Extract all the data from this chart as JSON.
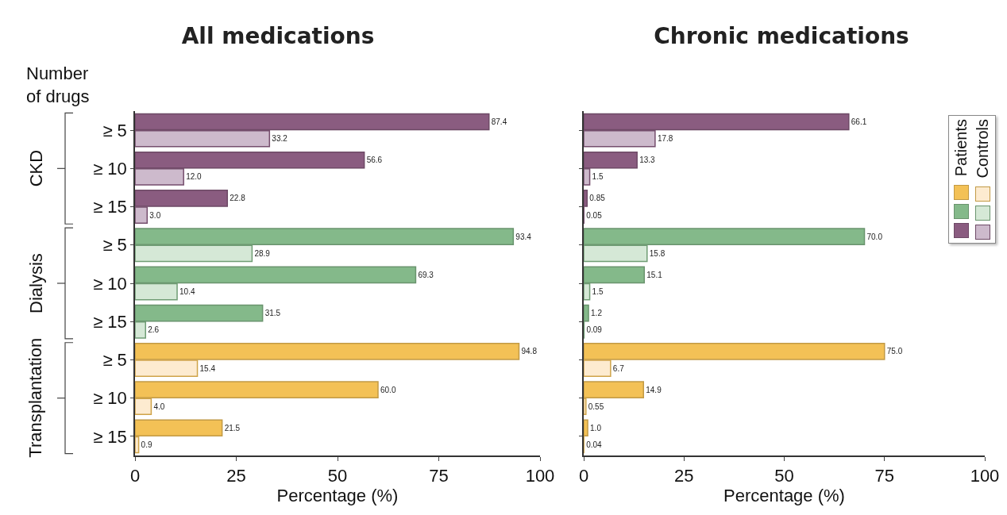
{
  "chart_data": [
    {
      "type": "bar",
      "orientation": "horizontal",
      "title": "All medications",
      "xlabel": "Percentage (%)",
      "categories": [
        "≥ 5",
        "≥ 10",
        "≥ 15",
        "≥ 5",
        "≥ 10",
        "≥ 15",
        "≥ 5",
        "≥ 10",
        "≥ 15"
      ],
      "xlim": [
        0,
        100
      ],
      "xticks": [
        0,
        25,
        50,
        75,
        100
      ],
      "legend": false,
      "grid": false,
      "annotations": [
        "Number of drugs",
        "CKD",
        "Dialysis",
        "Transplantation"
      ],
      "series": [
        {
          "colors": [
            "#8a5c80",
            "#8a5c80",
            "#8a5c80",
            "#84b98a",
            "#84b98a",
            "#84b98a",
            "#f3c156",
            "#f3c156",
            "#f3c156"
          ],
          "values": [
            87.4,
            56.6,
            22.8,
            93.4,
            69.3,
            31.5,
            94.8,
            60.0,
            21.5
          ],
          "value_labels": [
            "87.4",
            "56.6",
            "22.8",
            "93.4",
            "69.3",
            "31.5",
            "94.8",
            "60.0",
            "21.5"
          ]
        },
        {
          "colors": [
            "#cdbacc",
            "#cdbacc",
            "#cdbacc",
            "#d5e8d6",
            "#d5e8d6",
            "#d5e8d6",
            "#fdebd0",
            "#fdebd0",
            "#fdebd0"
          ],
          "values": [
            33.2,
            12.0,
            3.0,
            28.9,
            10.4,
            2.6,
            15.4,
            4.0,
            0.9
          ],
          "value_labels": [
            "33.2",
            "12.0",
            "3.0",
            "28.9",
            "10.4",
            "2.6",
            "15.4",
            "4.0",
            "0.9"
          ]
        }
      ]
    },
    {
      "type": "bar",
      "orientation": "horizontal",
      "title": "Chronic medications",
      "xlabel": "Percentage (%)",
      "categories": [
        null,
        null,
        null,
        null,
        null,
        null,
        null,
        null,
        null
      ],
      "xlim": [
        0,
        100
      ],
      "xticks": [
        0,
        25,
        50,
        75,
        100
      ],
      "tick_labels": "x",
      "legend": "top right",
      "grid": false,
      "series": [
        {
          "name": "Patients",
          "colors": [
            "#8a5c80",
            "#8a5c80",
            "#8a5c80",
            "#84b98a",
            "#84b98a",
            "#84b98a",
            "#f3c156",
            "#f3c156",
            "#f3c156"
          ],
          "values": [
            66.1,
            13.3,
            0.85,
            70.0,
            15.1,
            1.2,
            75.0,
            14.9,
            1.0
          ],
          "value_labels": [
            "66.1",
            "13.3",
            "0.85",
            "70.0",
            "15.1",
            "1.2",
            "75.0",
            "14.9",
            "1.0"
          ]
        },
        {
          "name": "Controls",
          "colors": [
            "#cdbacc",
            "#cdbacc",
            "#cdbacc",
            "#d5e8d6",
            "#d5e8d6",
            "#d5e8d6",
            "#fdebd0",
            "#fdebd0",
            "#fdebd0"
          ],
          "values": [
            17.8,
            1.5,
            0.05,
            15.8,
            1.5,
            0.09,
            6.7,
            0.55,
            0.04
          ],
          "value_labels": [
            "17.8",
            "1.5",
            "0.05",
            "15.8",
            "1.5",
            "0.09",
            "6.7",
            "0.55",
            "0.04"
          ]
        }
      ]
    }
  ]
}
